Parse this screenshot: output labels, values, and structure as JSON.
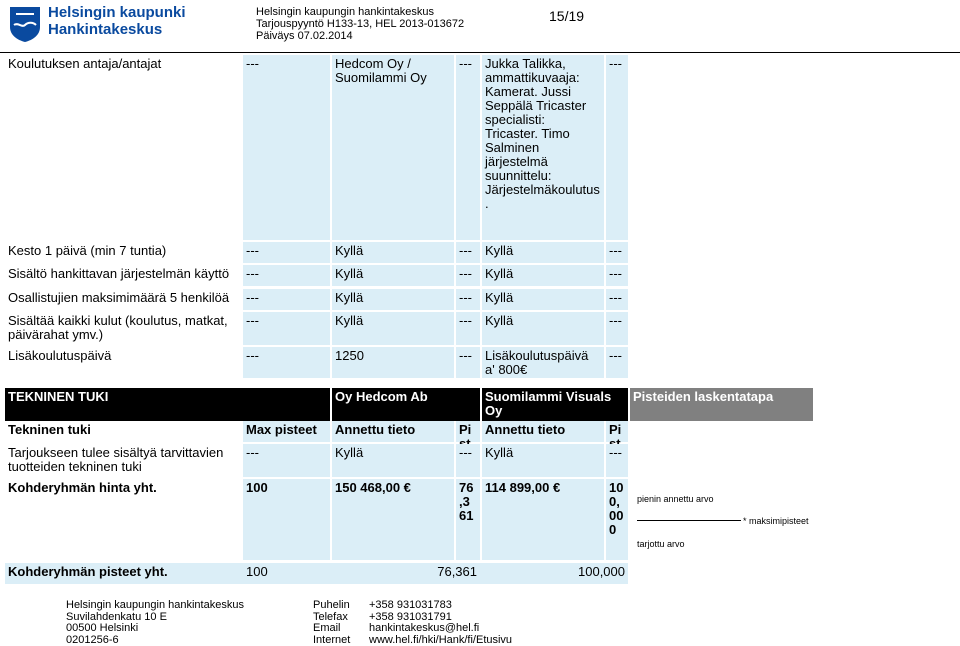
{
  "header": {
    "logo_title": "Helsingin kaupunki",
    "logo_subtitle": "Hankintakeskus",
    "org": "Helsingin kaupungin hankintakeskus",
    "reference": "Tarjouspyyntö H133-13, HEL 2013-013672",
    "date": "Päiväys 07.02.2014",
    "page": "15/19"
  },
  "table1": {
    "rows": [
      [
        "Koulutuksen antaja/antajat",
        "---",
        "Hedcom Oy / Suomilammi Oy",
        "---",
        "Jukka Talikka, ammattikuvaaja: Kamerat. Jussi Seppälä Tricaster specialisti: Tricaster. Timo Salminen järjestelmä suunnittelu: Järjestelmäkoulutus.",
        "---"
      ],
      [
        "Kesto 1 päivä (min 7 tuntia)",
        "---",
        "Kyllä",
        "---",
        "Kyllä",
        "---"
      ],
      [
        "Sisältö hankittavan järjestelmän käyttö",
        "---",
        "Kyllä",
        "---",
        "Kyllä",
        "---"
      ],
      [
        "Osallistujien maksimimäärä 5 henkilöä",
        "---",
        "Kyllä",
        "---",
        "Kyllä",
        "---"
      ],
      [
        "Sisältää kaikki kulut (koulutus, matkat, päivärahat ymv.)",
        "---",
        "Kyllä",
        "---",
        "Kyllä",
        "---"
      ],
      [
        "Lisäkoulutuspäivä",
        "---",
        "1250",
        "---",
        "Lisäkoulutuspäivä a' 800€",
        "---"
      ]
    ]
  },
  "table2": {
    "headers": [
      "TEKNINEN TUKI",
      "Oy Hedcom Ab",
      "Suomilammi Visuals Oy"
    ],
    "method_title": "Pisteiden laskentatapa",
    "rows": [
      [
        "Tekninen tuki",
        "Max pisteet",
        "Annettu tieto",
        "Pisteet",
        "Annettu tieto",
        "Pisteet"
      ],
      [
        "Tarjoukseen tulee sisältyä tarvittavien tuotteiden tekninen tuki",
        "---",
        "Kyllä",
        "---",
        "Kyllä",
        "---"
      ],
      [
        "Kohderyhmän hinta yht.",
        "100",
        "150 468,00 €",
        "76,361",
        "114 899,00 €",
        "100,000"
      ]
    ],
    "total": {
      "label": "Kohderyhmän pisteet yht.",
      "max": "100",
      "score_1": "76,361",
      "score_2": "100,000"
    },
    "formula": {
      "numerator": "pienin annettu arvo",
      "multiplier": "* maksimipisteet",
      "denominator": "tarjottu arvo"
    }
  },
  "footer": {
    "address": [
      "Helsingin kaupungin hankintakeskus",
      "Suvilahdenkatu 10 E",
      "00500 Helsinki",
      "0201256-6"
    ],
    "contact_labels": [
      "Puhelin",
      "Telefax",
      "Email",
      "Internet"
    ],
    "contact_values": [
      "+358 931031783",
      "+358 931031791",
      "hankintakeskus@hel.fi",
      "www.hel.fi/hki/Hank/fi/Etusivu"
    ]
  }
}
